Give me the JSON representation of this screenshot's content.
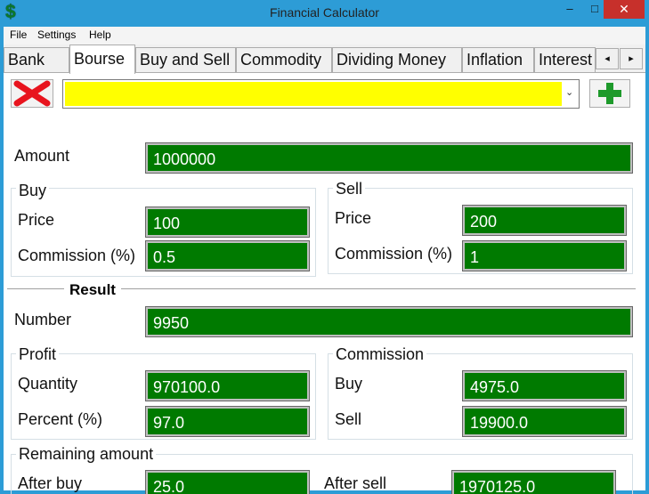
{
  "window": {
    "title": "Financial Calculator",
    "app_icon": "$",
    "minimize_glyph": "–",
    "maximize_glyph": "□",
    "close_glyph": "✕"
  },
  "menu": {
    "file": "File",
    "settings": "Settings",
    "help": "Help"
  },
  "tabs": [
    "Bank",
    "Bourse",
    "Buy and Sell",
    "Commodity",
    "Dividing Money",
    "Inflation",
    "Interest"
  ],
  "active_tab": "Bourse",
  "tab_scroll": {
    "left": "◂",
    "right": "▸"
  },
  "toolbar": {
    "combo_value": "",
    "combo_arrow": "⌄",
    "delete_color": "#e8141e",
    "add_color": "#1e9a2b"
  },
  "amount": {
    "label": "Amount",
    "value": "1000000"
  },
  "buy": {
    "title": "Buy",
    "price_label": "Price",
    "price_value": "100",
    "commission_label": "Commission (%)",
    "commission_value": "0.5"
  },
  "sell": {
    "title": "Sell",
    "price_label": "Price",
    "price_value": "200",
    "commission_label": "Commission (%)",
    "commission_value": "1"
  },
  "result": {
    "title": "Result",
    "number_label": "Number",
    "number_value": "9950"
  },
  "profit": {
    "title": "Profit",
    "quantity_label": "Quantity",
    "quantity_value": "970100.0",
    "percent_label": "Percent (%)",
    "percent_value": "97.0"
  },
  "commission": {
    "title": "Commission",
    "buy_label": "Buy",
    "buy_value": "4975.0",
    "sell_label": "Sell",
    "sell_value": "19900.0"
  },
  "remaining": {
    "title": "Remaining amount",
    "after_buy_label": "After buy",
    "after_buy_value": "25.0",
    "after_sell_label": "After sell",
    "after_sell_value": "1970125.0"
  },
  "colors": {
    "field_bg": "#007a00",
    "titlebar": "#2d9cd6",
    "close": "#c7302b",
    "combo_fill": "#ffff00"
  }
}
